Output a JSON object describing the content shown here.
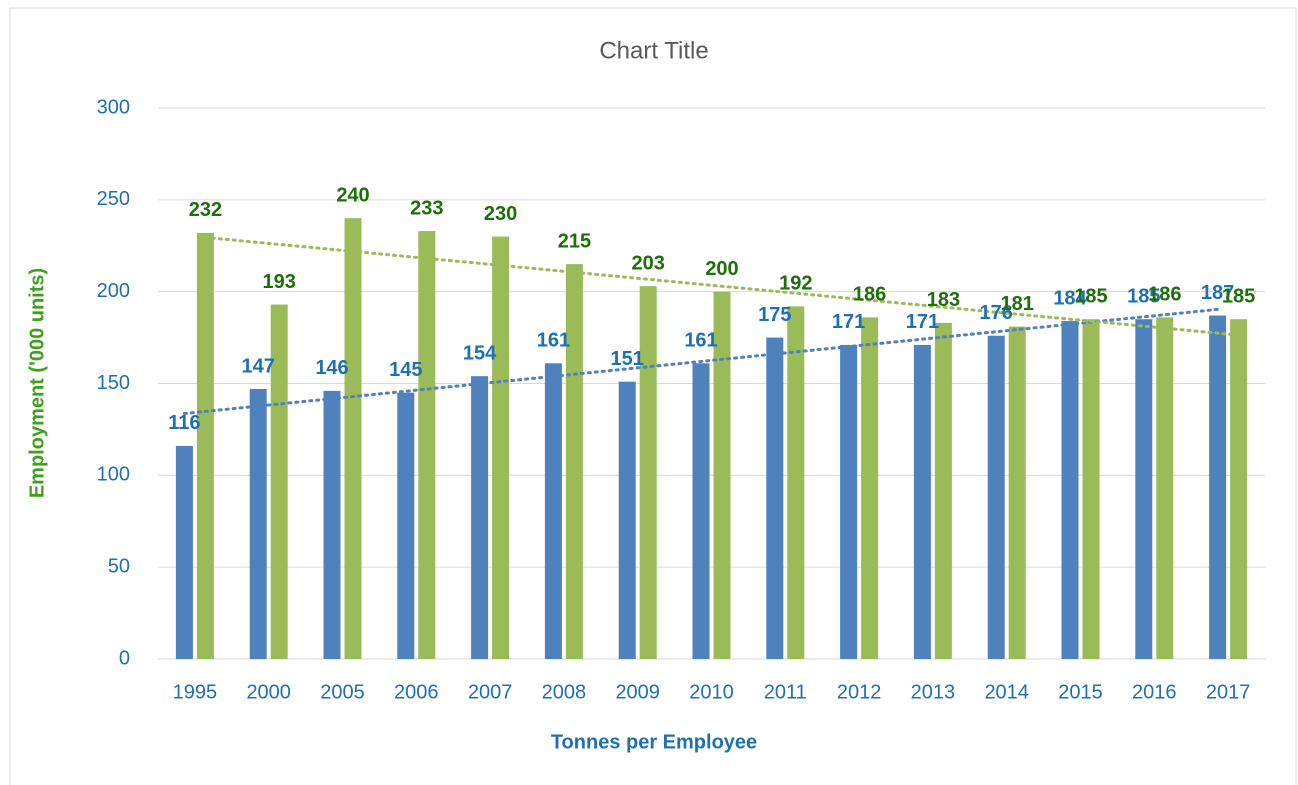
{
  "chart_data": {
    "type": "bar",
    "title": "Chart Title",
    "x_label": "Tonnes per Employee",
    "y_label": "Employment ('000 units)",
    "categories": [
      "1995",
      "2000",
      "2005",
      "2006",
      "2007",
      "2008",
      "2009",
      "2010",
      "2011",
      "2012",
      "2013",
      "2014",
      "2015",
      "2016",
      "2017"
    ],
    "series": [
      {
        "color": "#4f81bd",
        "label_color": "#1f6fb5",
        "values": [
          116,
          147,
          146,
          145,
          154,
          161,
          151,
          161,
          175,
          171,
          171,
          176,
          184,
          185,
          187
        ]
      },
      {
        "color": "#9bbb59",
        "label_color": "#1e6e0a",
        "values": [
          232,
          193,
          240,
          233,
          230,
          215,
          203,
          200,
          192,
          186,
          183,
          181,
          185,
          186,
          185
        ]
      }
    ],
    "trendline": "linear",
    "ylim": [
      0,
      300
    ],
    "yticks": [
      0,
      50,
      100,
      150,
      200,
      250,
      300
    ],
    "grid": true
  }
}
